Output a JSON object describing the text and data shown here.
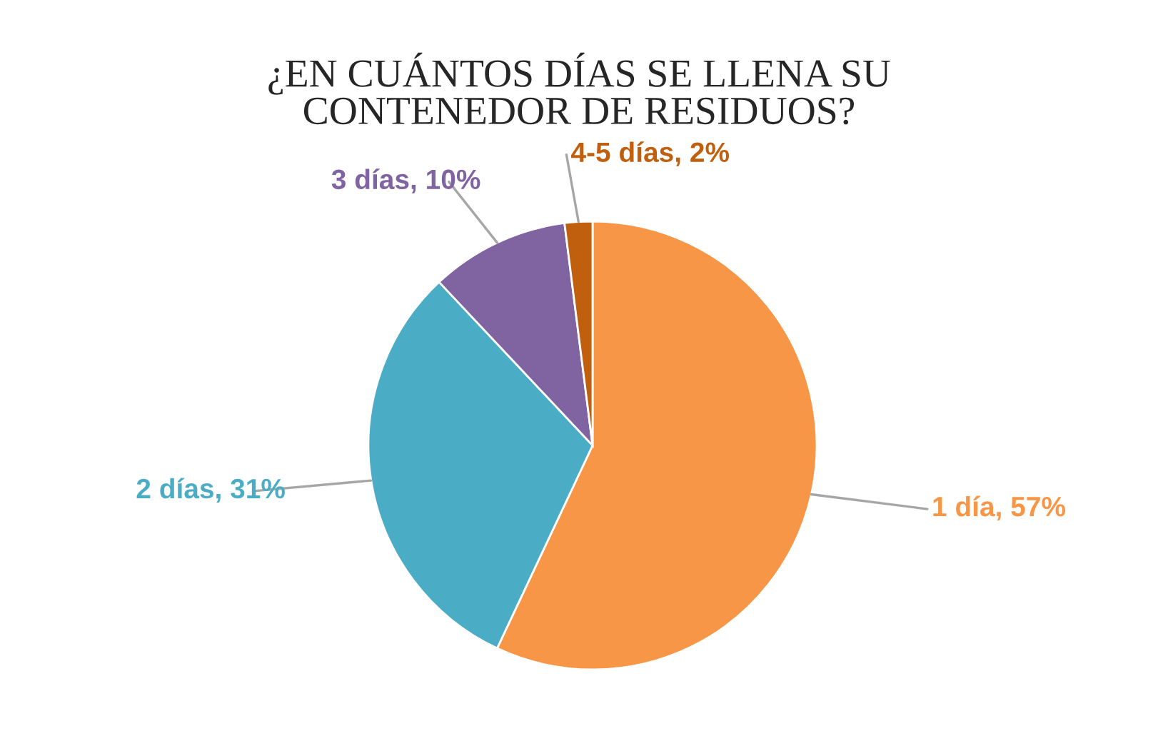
{
  "chart_data": {
    "type": "pie",
    "title": "¿EN CUÁNTOS DÍAS SE LLENA SU\nCONTENEDOR DE RESIDUOS?",
    "categories": [
      "1 día",
      "2 días",
      "3 días",
      "4-5 días"
    ],
    "values": [
      57,
      31,
      10,
      2
    ],
    "colors": [
      "#f79646",
      "#4bacc6",
      "#8064a2",
      "#c0600f"
    ],
    "value_labels": [
      ", 57%",
      ", 31%",
      ", 10%",
      ", 2%"
    ],
    "legend": false
  }
}
